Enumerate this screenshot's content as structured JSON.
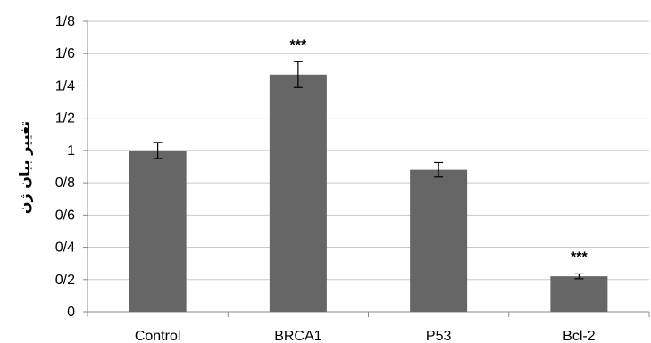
{
  "chart_data": {
    "type": "bar",
    "title": "",
    "xlabel": "",
    "ylabel": "تغییر بیان ژن",
    "categories": [
      "Control",
      "BRCA1",
      "P53",
      "Bcl-2"
    ],
    "values": [
      1.0,
      1.47,
      0.88,
      0.22
    ],
    "errors": [
      0.05,
      0.08,
      0.045,
      0.015
    ],
    "annotations": [
      "",
      "***",
      "",
      "***"
    ],
    "ylim": [
      0,
      1.8
    ],
    "yticks": [
      0,
      0.2,
      0.4,
      0.6,
      0.8,
      1,
      1.2,
      1.4,
      1.6,
      1.8
    ],
    "ytick_labels": [
      "0",
      "0/2",
      "0/4",
      "0/6",
      "0/8",
      "1",
      "1/2",
      "1/4",
      "1/6",
      "1/8"
    ],
    "grid": true,
    "legend": "none",
    "colors": {
      "bar": "#666666",
      "grid": "#c8c8c8",
      "axis": "#888888",
      "text": "#000000"
    }
  }
}
